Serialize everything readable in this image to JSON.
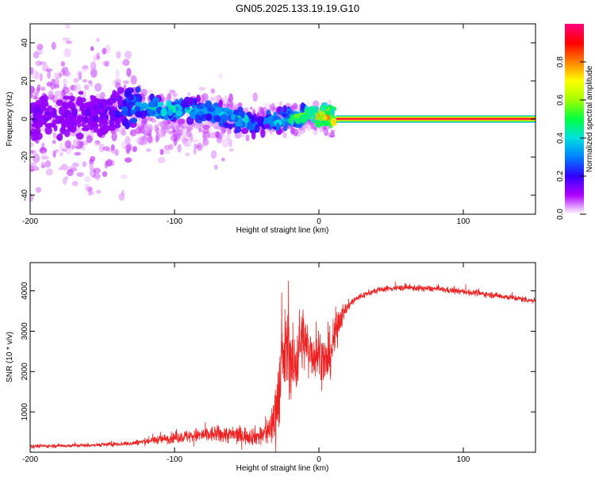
{
  "figure_title": "GN05.2025.133.19.19.G10",
  "chart_data": [
    {
      "type": "heatmap",
      "title": "",
      "xlabel": "Height of straight line (km)",
      "ylabel": "Frequency (Hz)",
      "xlim": [
        -200,
        150
      ],
      "ylim": [
        -50,
        50
      ],
      "xticks": [
        -200,
        -100,
        0,
        100
      ],
      "yticks": [
        -40,
        -20,
        0,
        20,
        40
      ],
      "colorbar": {
        "label": "Normalized spectral amplitude",
        "range": [
          0.0,
          1.0
        ],
        "ticks": [
          "0.0",
          "0.2",
          "0.4",
          "0.6",
          "0.8"
        ],
        "colors": [
          "#ffffff",
          "#b000ff",
          "#3000ff",
          "#0080ff",
          "#00e0e0",
          "#00ff40",
          "#a0ff00",
          "#ffff00",
          "#ff8000",
          "#ff0000",
          "#ff0080"
        ]
      },
      "ridge": {
        "name": "dominant frequency track",
        "x": [
          -200,
          -180,
          -160,
          -140,
          -125,
          -110,
          -100,
          -90,
          -80,
          -70,
          -60,
          -50,
          -45,
          -40,
          -35,
          -30,
          -25,
          -20,
          -15,
          -10,
          -5,
          0,
          5,
          10,
          12,
          150
        ],
        "y": [
          2,
          1,
          3,
          4,
          6,
          6,
          5,
          5,
          4,
          3,
          1,
          -1,
          -3,
          -2,
          0,
          -1,
          0,
          0,
          1,
          2,
          2,
          2,
          2,
          1,
          0,
          0
        ],
        "amplitude": [
          0.15,
          0.15,
          0.15,
          0.2,
          0.4,
          0.45,
          0.45,
          0.4,
          0.35,
          0.4,
          0.45,
          0.4,
          0.3,
          0.3,
          0.35,
          0.4,
          0.45,
          0.5,
          0.55,
          0.6,
          0.7,
          0.8,
          0.85,
          0.85,
          0.9,
          1.0
        ]
      },
      "constant_line": {
        "x_start": 12,
        "x_end": 150,
        "y": 0,
        "amplitude": 1.0
      }
    },
    {
      "type": "line",
      "title": "",
      "xlabel": "Height of straight line (km)",
      "ylabel": "SNR (10 * v/v)",
      "xlim": [
        -200,
        150
      ],
      "ylim": [
        0,
        4700
      ],
      "xticks": [
        -200,
        -100,
        0,
        100
      ],
      "yticks": [
        1000,
        2000,
        3000,
        4000
      ],
      "color": "#ee2222",
      "envelope": {
        "x": [
          -200,
          -160,
          -130,
          -110,
          -90,
          -70,
          -55,
          -40,
          -33,
          -30,
          -27,
          -24,
          -22,
          -20,
          -18,
          -15,
          -12,
          -8,
          -5,
          -2,
          0,
          3,
          6,
          9,
          12,
          14,
          18,
          22,
          28,
          35,
          45,
          60,
          80,
          100,
          120,
          140,
          150
        ],
        "mean": [
          150,
          170,
          220,
          320,
          400,
          450,
          420,
          400,
          600,
          1000,
          1800,
          2400,
          2600,
          2500,
          2000,
          2400,
          2900,
          2600,
          2500,
          2400,
          2500,
          2300,
          2200,
          2600,
          3000,
          3300,
          3500,
          3700,
          3850,
          3950,
          4050,
          4080,
          4050,
          3980,
          3900,
          3800,
          3750
        ],
        "noise": [
          60,
          60,
          80,
          150,
          220,
          280,
          300,
          300,
          600,
          1200,
          1400,
          1400,
          1300,
          1300,
          1400,
          1200,
          1100,
          900,
          800,
          900,
          900,
          800,
          800,
          800,
          700,
          500,
          250,
          150,
          120,
          100,
          100,
          100,
          100,
          100,
          100,
          100,
          100
        ]
      }
    }
  ]
}
